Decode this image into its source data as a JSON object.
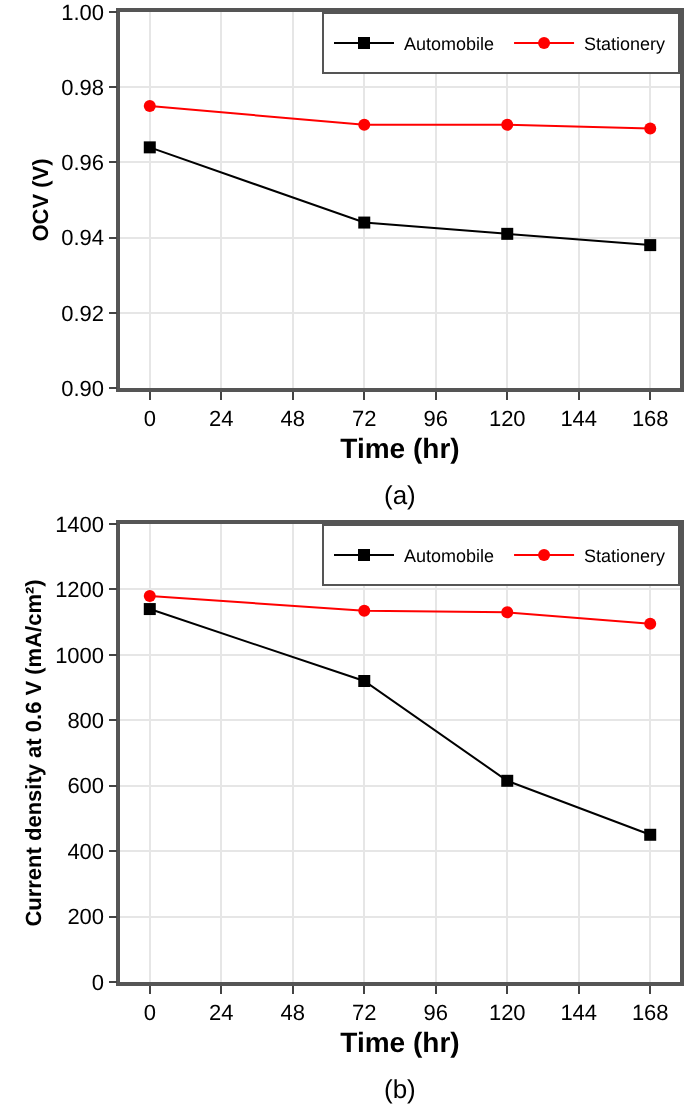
{
  "chart_data": [
    {
      "type": "line",
      "xlabel": "Time (hr)",
      "ylabel": "OCV (V)",
      "annotations": [
        "(a)"
      ],
      "x": [
        0,
        72,
        120,
        168
      ],
      "series": [
        {
          "name": "Automobile",
          "color": "#000000",
          "marker": "square",
          "values": [
            0.964,
            0.944,
            0.941,
            0.938
          ]
        },
        {
          "name": "Stationery",
          "color": "#ff0000",
          "marker": "circle",
          "values": [
            0.975,
            0.97,
            0.97,
            0.969
          ]
        }
      ],
      "xlim": [
        -10,
        178
      ],
      "xticks": [
        0,
        24,
        48,
        72,
        96,
        120,
        144,
        168
      ],
      "ylim": [
        0.9,
        1.0
      ],
      "yticks": [
        {
          "value": 0.9,
          "label": "0.90"
        },
        {
          "value": 0.92,
          "label": "0.92"
        },
        {
          "value": 0.94,
          "label": "0.94"
        },
        {
          "value": 0.96,
          "label": "0.96"
        },
        {
          "value": 0.98,
          "label": "0.98"
        },
        {
          "value": 1.0,
          "label": "1.00"
        }
      ],
      "grid": true,
      "legend": "top right"
    },
    {
      "type": "line",
      "xlabel": "Time (hr)",
      "ylabel": "Current density at 0.6 V (mA/cm²)",
      "annotations": [
        "(b)"
      ],
      "x": [
        0,
        72,
        120,
        168
      ],
      "series": [
        {
          "name": "Automobile",
          "color": "#000000",
          "marker": "square",
          "values": [
            1140,
            920,
            615,
            450
          ]
        },
        {
          "name": "Stationery",
          "color": "#ff0000",
          "marker": "circle",
          "values": [
            1180,
            1135,
            1130,
            1095
          ]
        }
      ],
      "xlim": [
        -10,
        178
      ],
      "xticks": [
        0,
        24,
        48,
        72,
        96,
        120,
        144,
        168
      ],
      "ylim": [
        0,
        1400
      ],
      "yticks": [
        0,
        200,
        400,
        600,
        800,
        1000,
        1200,
        1400
      ],
      "grid": true,
      "legend": "top right"
    }
  ]
}
